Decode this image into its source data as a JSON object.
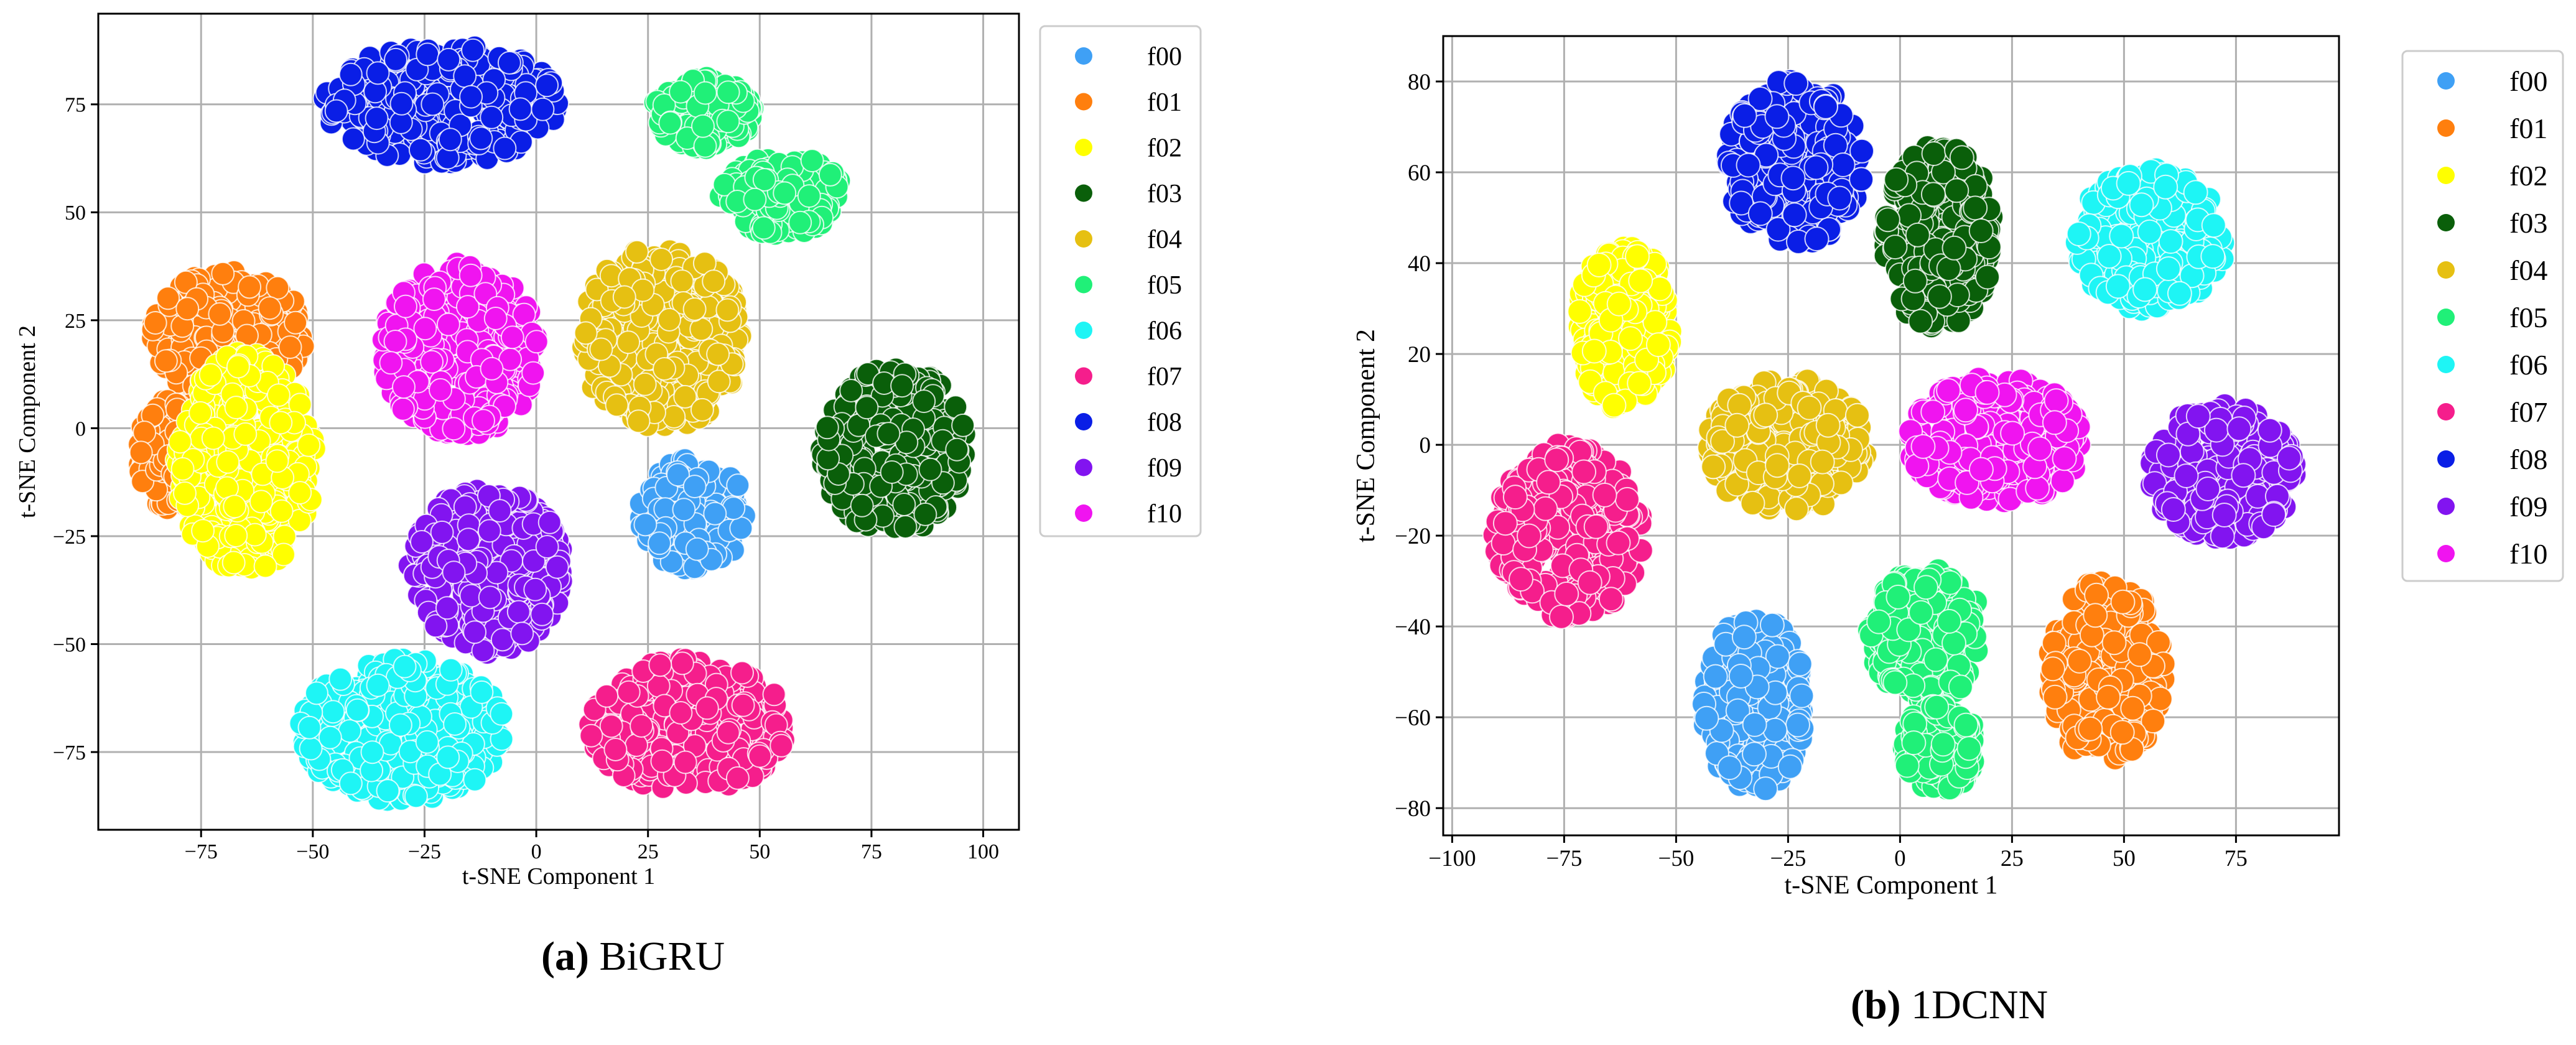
{
  "colors": {
    "f00": "#3fa0f5",
    "f01": "#ff7f0e",
    "f02": "#ffff00",
    "f03": "#0a5f0a",
    "f04": "#e6c012",
    "f05": "#20f078",
    "f06": "#1ef5f5",
    "f07": "#f51e8c",
    "f08": "#0a1ee6",
    "f09": "#8214f0",
    "f10": "#f014f0",
    "grid": "#b0b0b0",
    "frame": "#000000",
    "legend_border": "#cccccc"
  },
  "chart_data": [
    {
      "type": "scatter",
      "title": "",
      "xlabel": "t-SNE Component 1",
      "ylabel": "t-SNE Component 2",
      "xlim": [
        -98,
        108
      ],
      "ylim": [
        -93,
        96
      ],
      "xticks": [
        -75,
        -50,
        -25,
        0,
        25,
        50,
        75,
        100
      ],
      "yticks": [
        -75,
        -50,
        -25,
        0,
        25,
        50,
        75
      ],
      "xtick_labels": [
        "−75",
        "−50",
        "−25",
        "0",
        "25",
        "50",
        "75",
        "100"
      ],
      "ytick_labels": [
        "−75",
        "−50",
        "−25",
        "0",
        "25",
        "50",
        "75"
      ],
      "grid": true,
      "legend": "outside-right",
      "caption": {
        "letter": "(a)",
        "text": " BiGRU"
      },
      "series": [
        {
          "name": "f00",
          "clusters": [
            {
              "x": [
                22,
                48
              ],
              "y": [
                -34,
                -6
              ]
            }
          ]
        },
        {
          "name": "f01",
          "clusters": [
            {
              "x": [
                -88,
                -50
              ],
              "y": [
                4,
                38
              ]
            },
            {
              "x": [
                -90,
                -72
              ],
              "y": [
                -20,
                8
              ]
            }
          ]
        },
        {
          "name": "f02",
          "clusters": [
            {
              "x": [
                -82,
                -48
              ],
              "y": [
                -36,
                20
              ]
            }
          ]
        },
        {
          "name": "f03",
          "clusters": [
            {
              "x": [
                62,
                98
              ],
              "y": [
                -26,
                16
              ]
            }
          ]
        },
        {
          "name": "f04",
          "clusters": [
            {
              "x": [
                8,
                48
              ],
              "y": [
                -2,
                44
              ]
            }
          ]
        },
        {
          "name": "f05",
          "clusters": [
            {
              "x": [
                25,
                50
              ],
              "y": [
                64,
                82
              ]
            },
            {
              "x": [
                40,
                70
              ],
              "y": [
                44,
                64
              ]
            }
          ]
        },
        {
          "name": "f06",
          "clusters": [
            {
              "x": [
                -55,
                -5
              ],
              "y": [
                -88,
                -52
              ]
            }
          ]
        },
        {
          "name": "f07",
          "clusters": [
            {
              "x": [
                10,
                58
              ],
              "y": [
                -86,
                -52
              ]
            }
          ]
        },
        {
          "name": "f08",
          "clusters": [
            {
              "x": [
                -50,
                8
              ],
              "y": [
                60,
                90
              ]
            }
          ]
        },
        {
          "name": "f09",
          "clusters": [
            {
              "x": [
                -30,
                8
              ],
              "y": [
                -54,
                -12
              ]
            }
          ]
        },
        {
          "name": "f10",
          "clusters": [
            {
              "x": [
                -36,
                2
              ],
              "y": [
                -4,
                40
              ]
            }
          ]
        }
      ]
    },
    {
      "type": "scatter",
      "title": "",
      "xlabel": "t-SNE Component 1",
      "ylabel": "t-SNE Component 2",
      "xlim": [
        -102,
        98
      ],
      "ylim": [
        -86,
        90
      ],
      "xticks": [
        -100,
        -75,
        -50,
        -25,
        0,
        25,
        50,
        75
      ],
      "yticks": [
        -80,
        -60,
        -40,
        -20,
        0,
        20,
        40,
        60,
        80
      ],
      "xtick_labels": [
        "−100",
        "−75",
        "−50",
        "−25",
        "0",
        "25",
        "50",
        "75"
      ],
      "ytick_labels": [
        "−80",
        "−60",
        "−40",
        "−20",
        "0",
        "20",
        "40",
        "60",
        "80"
      ],
      "grid": true,
      "legend": "outside-right",
      "caption": {
        "letter": "(b)",
        "text": " 1DCNN"
      },
      "series": [
        {
          "name": "f00",
          "clusters": [
            {
              "x": [
                -45,
                -20
              ],
              "y": [
                -78,
                -36
              ]
            }
          ]
        },
        {
          "name": "f01",
          "clusters": [
            {
              "x": [
                32,
                60
              ],
              "y": [
                -72,
                -28
              ]
            }
          ]
        },
        {
          "name": "f02",
          "clusters": [
            {
              "x": [
                -73,
                -50
              ],
              "y": [
                6,
                46
              ]
            }
          ]
        },
        {
          "name": "f03",
          "clusters": [
            {
              "x": [
                -5,
                22
              ],
              "y": [
                24,
                68
              ]
            }
          ]
        },
        {
          "name": "f04",
          "clusters": [
            {
              "x": [
                -45,
                -6
              ],
              "y": [
                -16,
                16
              ]
            }
          ]
        },
        {
          "name": "f05",
          "clusters": [
            {
              "x": [
                -8,
                20
              ],
              "y": [
                -58,
                -26
              ]
            },
            {
              "x": [
                0,
                18
              ],
              "y": [
                -77,
                -56
              ]
            }
          ]
        },
        {
          "name": "f06",
          "clusters": [
            {
              "x": [
                38,
                74
              ],
              "y": [
                28,
                62
              ]
            }
          ]
        },
        {
          "name": "f07",
          "clusters": [
            {
              "x": [
                -92,
                -56
              ],
              "y": [
                -40,
                2
              ]
            }
          ]
        },
        {
          "name": "f08",
          "clusters": [
            {
              "x": [
                -40,
                -7
              ],
              "y": [
                42,
                82
              ]
            }
          ]
        },
        {
          "name": "f09",
          "clusters": [
            {
              "x": [
                54,
                90
              ],
              "y": [
                -22,
                10
              ]
            }
          ]
        },
        {
          "name": "f10",
          "clusters": [
            {
              "x": [
                0,
                43
              ],
              "y": [
                -14,
                16
              ]
            }
          ]
        }
      ]
    }
  ]
}
